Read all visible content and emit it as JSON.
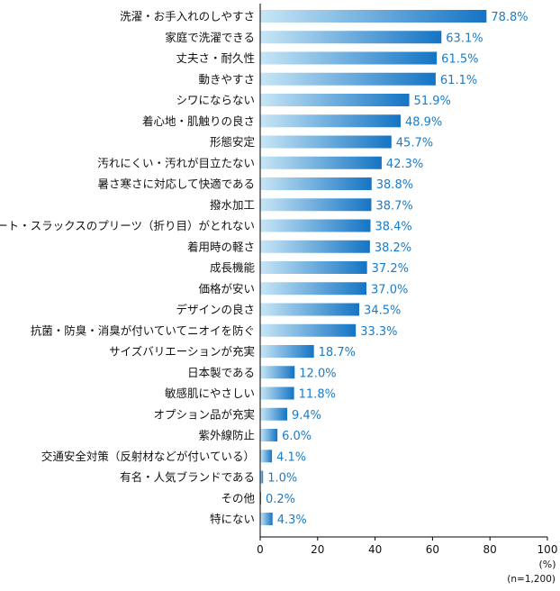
{
  "chart_data": {
    "type": "bar",
    "orientation": "horizontal",
    "categories": [
      "洗濯・お手入れのしやすさ",
      "家庭で洗濯できる",
      "丈夫さ・耐久性",
      "動きやすさ",
      "シワにならない",
      "着心地・肌触りの良さ",
      "形態安定",
      "汚れにくい・汚れが目立たない",
      "暑さ寒さに対応して快適である",
      "撥水加工",
      "スカート・スラックスのプリーツ（折り目）がとれない",
      "着用時の軽さ",
      "成長機能",
      "価格が安い",
      "デザインの良さ",
      "抗菌・防臭・消臭が付いていてニオイを防ぐ",
      "サイズバリエーションが充実",
      "日本製である",
      "敏感肌にやさしい",
      "オプション品が充実",
      "紫外線防止",
      "交通安全対策（反射材などが付いている）",
      "有名・人気ブランドである",
      "その他",
      "特にない"
    ],
    "values": [
      78.8,
      63.1,
      61.5,
      61.1,
      51.9,
      48.9,
      45.7,
      42.3,
      38.8,
      38.7,
      38.4,
      38.2,
      37.2,
      37.0,
      34.5,
      33.3,
      18.7,
      12.0,
      11.8,
      9.4,
      6.0,
      4.1,
      1.0,
      0.2,
      4.3
    ],
    "value_labels": [
      "78.8%",
      "63.1%",
      "61.5%",
      "61.1%",
      "51.9%",
      "48.9%",
      "45.7%",
      "42.3%",
      "38.8%",
      "38.7%",
      "38.4%",
      "38.2%",
      "37.2%",
      "37.0%",
      "34.5%",
      "33.3%",
      "18.7%",
      "12.0%",
      "11.8%",
      "9.4%",
      "6.0%",
      "4.1%",
      "1.0%",
      "0.2%",
      "4.3%"
    ],
    "xlim": [
      0,
      100
    ],
    "xticks": [
      "0",
      "20",
      "40",
      "60",
      "80",
      "100"
    ],
    "xunit": "(%)",
    "sample_note": "(n=1,200)",
    "colors": {
      "bar_start": "#c8e6f6",
      "bar_end": "#1474c4",
      "value_label": "#1a7cc8",
      "category_label": "#111111",
      "axis": "#000000"
    },
    "grid": false,
    "legend": "none"
  }
}
